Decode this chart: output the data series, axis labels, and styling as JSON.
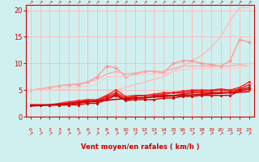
{
  "bg_color": "#d0f0f0",
  "grid_color": "#ffbbbb",
  "xlabel": "Vent moyen/en rafales ( km/h )",
  "x": [
    0,
    1,
    2,
    3,
    4,
    5,
    6,
    7,
    8,
    9,
    10,
    11,
    12,
    13,
    14,
    15,
    16,
    17,
    18,
    19,
    20,
    21,
    22,
    23
  ],
  "series": [
    {
      "label": "pink_upper_wide",
      "color": "#ffbbbb",
      "alpha": 1.0,
      "lw": 1.0,
      "marker": null,
      "y": [
        5.0,
        5.0,
        5.0,
        5.0,
        5.0,
        5.0,
        5.0,
        5.0,
        5.0,
        5.0,
        5.5,
        6.0,
        6.5,
        7.0,
        7.5,
        8.5,
        9.5,
        10.5,
        11.5,
        13.0,
        15.0,
        18.0,
        20.5,
        20.5
      ]
    },
    {
      "label": "pink_mid1",
      "color": "#ff9999",
      "alpha": 1.0,
      "lw": 1.0,
      "marker": "D",
      "markersize": 2,
      "y": [
        5.0,
        5.2,
        5.5,
        5.8,
        6.0,
        6.0,
        6.5,
        7.5,
        9.5,
        9.2,
        7.5,
        8.0,
        8.5,
        8.5,
        8.2,
        10.0,
        10.5,
        10.5,
        10.0,
        9.8,
        9.5,
        10.5,
        14.5,
        14.0
      ]
    },
    {
      "label": "pink_mid2",
      "color": "#ffaaaa",
      "alpha": 1.0,
      "lw": 1.0,
      "marker": null,
      "y": [
        5.0,
        5.2,
        5.5,
        5.8,
        6.0,
        6.2,
        6.5,
        7.0,
        8.0,
        8.5,
        8.0,
        8.2,
        8.5,
        8.5,
        8.5,
        9.0,
        9.5,
        9.5,
        9.5,
        9.5,
        9.5,
        9.5,
        9.8,
        9.5
      ]
    },
    {
      "label": "pink_lower",
      "color": "#ffcccc",
      "alpha": 1.0,
      "lw": 1.0,
      "marker": null,
      "y": [
        5.0,
        5.0,
        5.0,
        5.2,
        5.5,
        5.5,
        5.8,
        6.0,
        7.5,
        7.5,
        7.5,
        7.8,
        8.0,
        8.0,
        8.0,
        8.5,
        8.8,
        9.0,
        9.0,
        9.0,
        9.0,
        9.0,
        9.2,
        9.5
      ]
    },
    {
      "label": "red_upper",
      "color": "#ff2222",
      "alpha": 1.0,
      "lw": 1.0,
      "marker": "s",
      "markersize": 2,
      "y": [
        2.2,
        2.2,
        2.2,
        2.5,
        2.8,
        3.0,
        3.2,
        3.2,
        4.0,
        5.0,
        3.8,
        4.0,
        4.0,
        4.2,
        4.5,
        4.5,
        4.8,
        5.0,
        5.0,
        5.0,
        5.2,
        5.0,
        5.5,
        6.5
      ]
    },
    {
      "label": "red_mid1",
      "color": "#ee1111",
      "alpha": 1.0,
      "lw": 1.0,
      "marker": "s",
      "markersize": 2,
      "y": [
        2.2,
        2.2,
        2.2,
        2.2,
        2.5,
        2.8,
        3.0,
        3.0,
        3.8,
        4.5,
        3.5,
        3.8,
        4.0,
        4.0,
        4.2,
        4.5,
        4.5,
        4.8,
        4.8,
        4.8,
        5.0,
        4.8,
        5.2,
        6.0
      ]
    },
    {
      "label": "red_mid2",
      "color": "#dd0000",
      "alpha": 1.0,
      "lw": 1.0,
      "marker": "s",
      "markersize": 2,
      "y": [
        2.2,
        2.2,
        2.2,
        2.2,
        2.2,
        2.5,
        2.8,
        2.8,
        3.5,
        4.2,
        3.2,
        3.5,
        3.5,
        3.8,
        4.0,
        4.0,
        4.2,
        4.5,
        4.5,
        4.5,
        4.5,
        4.5,
        5.0,
        5.5
      ]
    },
    {
      "label": "red_lower",
      "color": "#cc0000",
      "alpha": 1.0,
      "lw": 1.0,
      "marker": "s",
      "markersize": 2,
      "y": [
        2.2,
        2.2,
        2.2,
        2.2,
        2.2,
        2.2,
        2.5,
        2.5,
        3.2,
        4.0,
        3.0,
        3.2,
        3.2,
        3.2,
        3.5,
        3.5,
        3.8,
        3.8,
        4.0,
        4.0,
        4.0,
        4.0,
        4.8,
        5.2
      ]
    },
    {
      "label": "red_straight",
      "color": "#cc0000",
      "alpha": 1.0,
      "lw": 1.2,
      "marker": null,
      "y": [
        2.0,
        2.1,
        2.2,
        2.35,
        2.5,
        2.65,
        2.8,
        2.95,
        3.1,
        3.25,
        3.4,
        3.5,
        3.6,
        3.7,
        3.8,
        3.9,
        4.0,
        4.1,
        4.2,
        4.3,
        4.4,
        4.5,
        4.6,
        4.7
      ]
    }
  ],
  "ylim": [
    0,
    21
  ],
  "xlim": [
    -0.5,
    23.5
  ],
  "yticks": [
    0,
    5,
    10,
    15,
    20
  ],
  "xticks": [
    0,
    1,
    2,
    3,
    4,
    5,
    6,
    7,
    8,
    9,
    10,
    11,
    12,
    13,
    14,
    15,
    16,
    17,
    18,
    19,
    20,
    21,
    22,
    23
  ],
  "tick_color": "#cc0000",
  "label_color": "#cc0000",
  "spine_color": "#cc0000"
}
